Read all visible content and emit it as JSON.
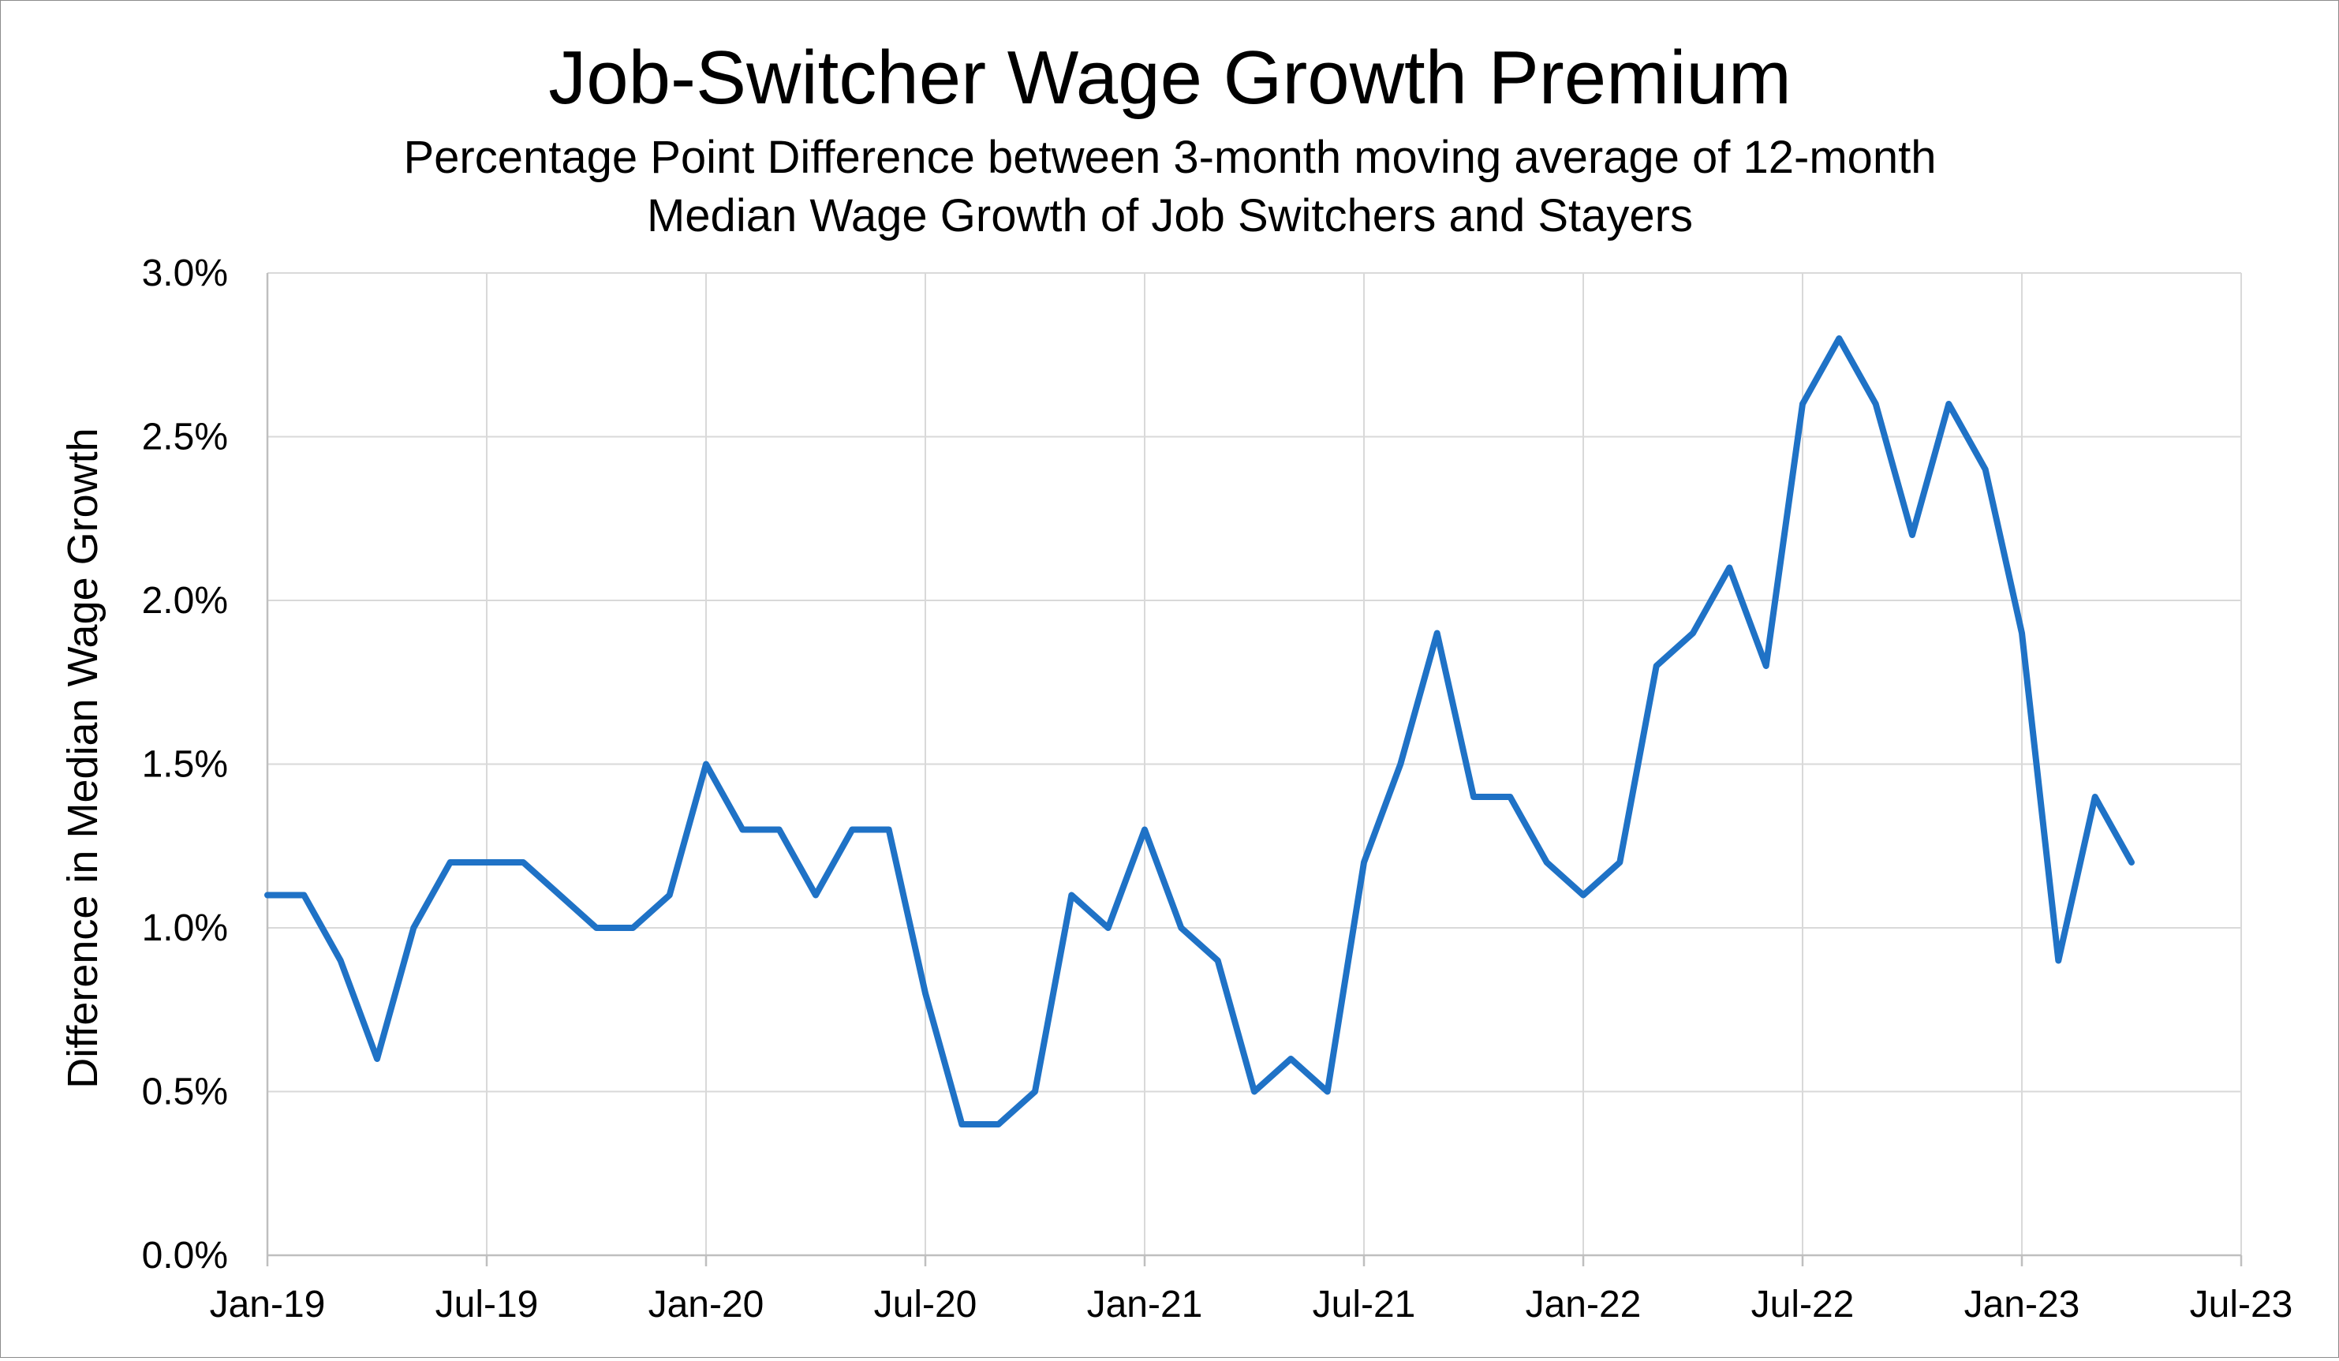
{
  "chart_data": {
    "type": "line",
    "title": "Job-Switcher Wage Growth Premium",
    "subtitle_lines": [
      "Percentage Point Difference between 3-month moving average of 12-month",
      "Median Wage Growth of Job Switchers and Stayers"
    ],
    "xlabel": "",
    "ylabel": "Difference in Median Wage Growth",
    "ylim": [
      0,
      3.0
    ],
    "y_ticks": [
      0,
      0.5,
      1.0,
      1.5,
      2.0,
      2.5,
      3.0
    ],
    "y_tick_labels": [
      "0.0%",
      "0.5%",
      "1.0%",
      "1.5%",
      "2.0%",
      "2.5%",
      "3.0%"
    ],
    "x_tick_labels": [
      "Jan-19",
      "Jul-19",
      "Jan-20",
      "Jul-20",
      "Jan-21",
      "Jul-21",
      "Jan-22",
      "Jul-22",
      "Jan-23",
      "Jul-23"
    ],
    "x_tick_dates": [
      "2019-01",
      "2019-07",
      "2020-01",
      "2020-07",
      "2021-01",
      "2021-07",
      "2022-01",
      "2022-07",
      "2023-01",
      "2023-07"
    ],
    "xlim": [
      "2019-01",
      "2023-07"
    ],
    "grid": true,
    "legend": "none",
    "line_color": "#1f72c6",
    "x": [
      "2019-01",
      "2019-02",
      "2019-03",
      "2019-04",
      "2019-05",
      "2019-06",
      "2019-07",
      "2019-08",
      "2019-09",
      "2019-10",
      "2019-11",
      "2019-12",
      "2020-01",
      "2020-02",
      "2020-03",
      "2020-04",
      "2020-05",
      "2020-06",
      "2020-07",
      "2020-08",
      "2020-09",
      "2020-10",
      "2020-11",
      "2020-12",
      "2021-01",
      "2021-02",
      "2021-03",
      "2021-04",
      "2021-05",
      "2021-06",
      "2021-07",
      "2021-08",
      "2021-09",
      "2021-10",
      "2021-11",
      "2021-12",
      "2022-01",
      "2022-02",
      "2022-03",
      "2022-04",
      "2022-05",
      "2022-06",
      "2022-07",
      "2022-08",
      "2022-09",
      "2022-10",
      "2022-11",
      "2022-12",
      "2023-01",
      "2023-02",
      "2023-03",
      "2023-04"
    ],
    "series": [
      {
        "values": [
          1.1,
          1.1,
          0.9,
          0.6,
          1.0,
          1.2,
          1.2,
          1.2,
          1.1,
          1.0,
          1.0,
          1.1,
          1.5,
          1.3,
          1.3,
          1.1,
          1.3,
          1.3,
          0.8,
          0.4,
          0.4,
          0.5,
          1.1,
          1.0,
          1.3,
          1.0,
          0.9,
          0.5,
          0.6,
          0.5,
          1.2,
          1.5,
          1.9,
          1.4,
          1.4,
          1.2,
          1.1,
          1.2,
          1.8,
          1.9,
          2.1,
          1.8,
          2.6,
          2.8,
          2.6,
          2.2,
          2.6,
          2.4,
          1.9,
          0.9,
          1.4,
          1.2
        ]
      }
    ]
  }
}
